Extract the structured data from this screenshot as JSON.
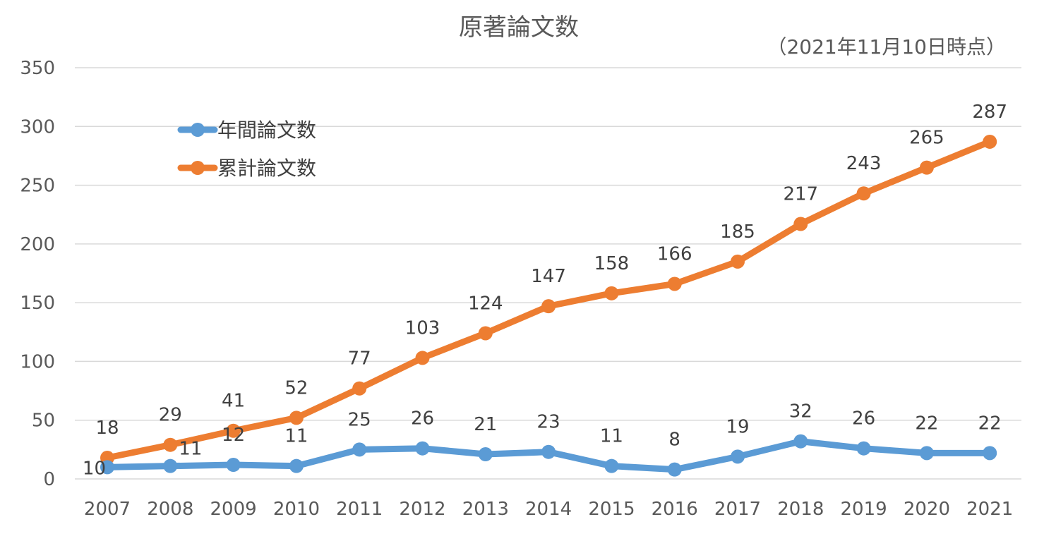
{
  "chart_data": {
    "type": "line",
    "title": "原著論文数",
    "note": "（2021年11月10日時点）",
    "categories": [
      "2007",
      "2008",
      "2009",
      "2010",
      "2011",
      "2012",
      "2013",
      "2014",
      "2015",
      "2016",
      "2017",
      "2018",
      "2019",
      "2020",
      "2021"
    ],
    "ylim": [
      0,
      350
    ],
    "yticks": [
      "0",
      "50",
      "100",
      "150",
      "200",
      "250",
      "300",
      "350"
    ],
    "grid": true,
    "legend_position": "top-left",
    "series": [
      {
        "name": "年間論文数",
        "color": "#5b9bd5",
        "values": [
          10,
          11,
          12,
          11,
          25,
          26,
          21,
          23,
          11,
          8,
          19,
          32,
          26,
          22,
          22
        ]
      },
      {
        "name": "累計論文数",
        "color": "#ed7d31",
        "values": [
          18,
          29,
          41,
          52,
          77,
          103,
          124,
          147,
          158,
          166,
          185,
          217,
          243,
          265,
          287
        ]
      }
    ]
  }
}
